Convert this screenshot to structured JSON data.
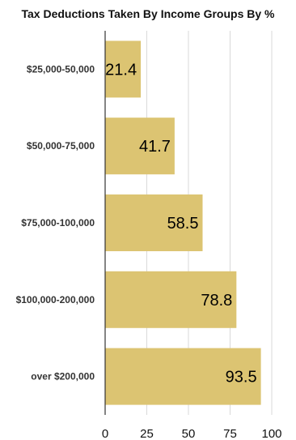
{
  "chart_data": {
    "type": "bar",
    "orientation": "horizontal",
    "title": "Tax Deductions Taken By Income Groups By %",
    "categories": [
      "$25,000-50,000",
      "$50,000-75,000",
      "$75,000-100,000",
      "$100,000-200,000",
      "over $200,000"
    ],
    "values": [
      21.4,
      41.7,
      58.5,
      78.8,
      93.5
    ],
    "xlim": [
      0,
      100
    ],
    "xticks": [
      "0",
      "25",
      "50",
      "75",
      "100"
    ],
    "grid": true,
    "bar_color": "#dcc472"
  }
}
